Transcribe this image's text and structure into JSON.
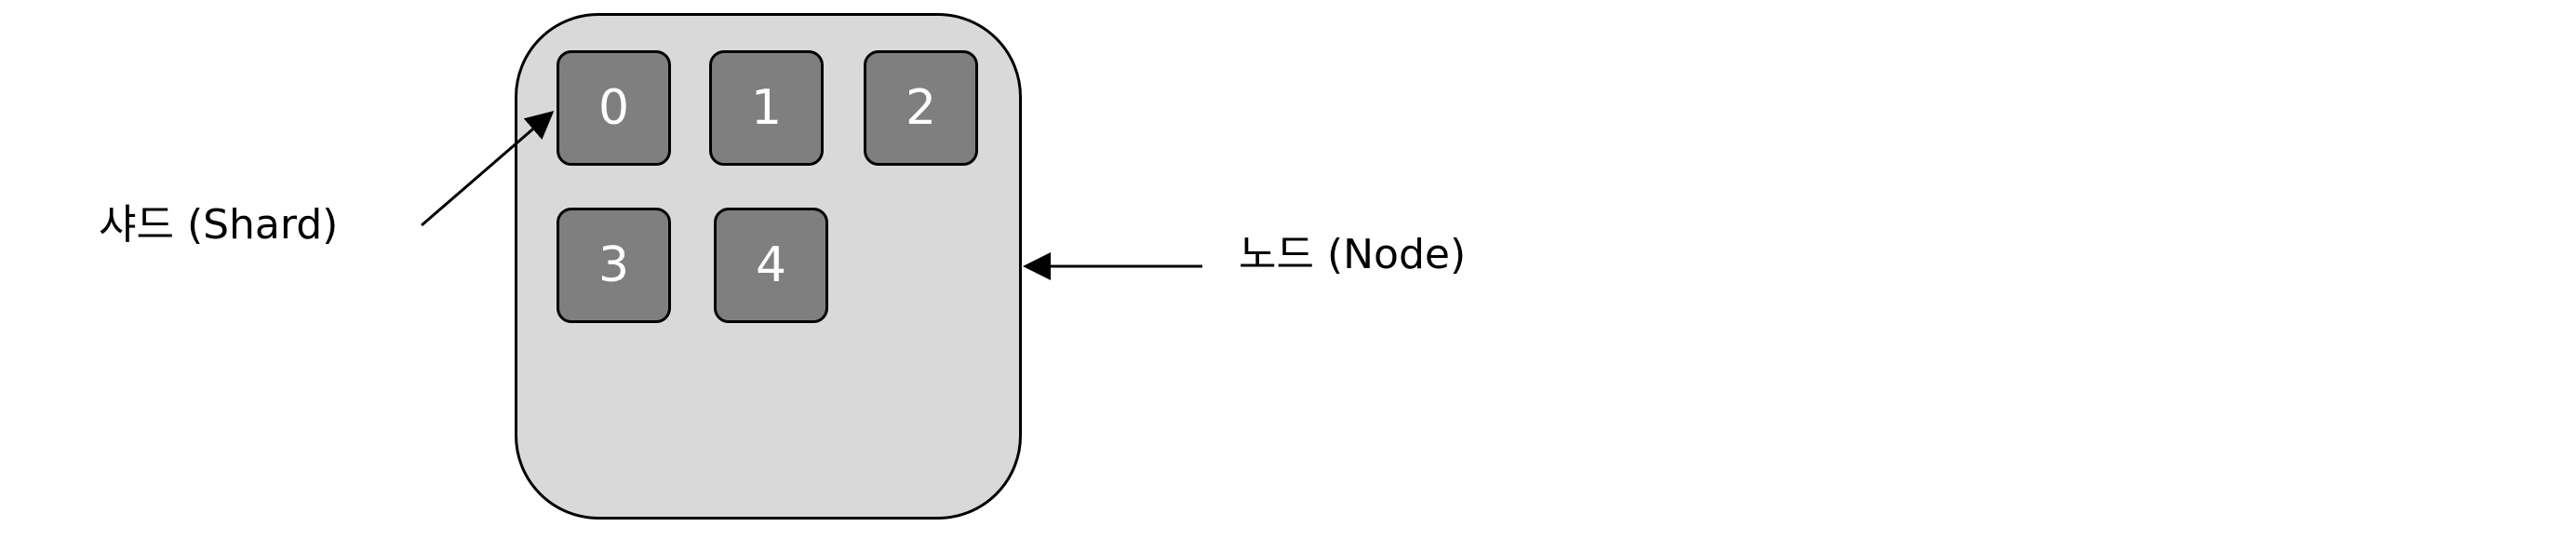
{
  "diagram": {
    "shards": [
      "0",
      "1",
      "2",
      "3",
      "4"
    ],
    "labels": {
      "shard": "샤드 (Shard)",
      "node": "노드 (Node)"
    },
    "colors": {
      "node_fill": "#d9d9d9",
      "shard_fill": "#7f7f7f",
      "shard_text": "#ffffff",
      "stroke": "#000000"
    }
  }
}
